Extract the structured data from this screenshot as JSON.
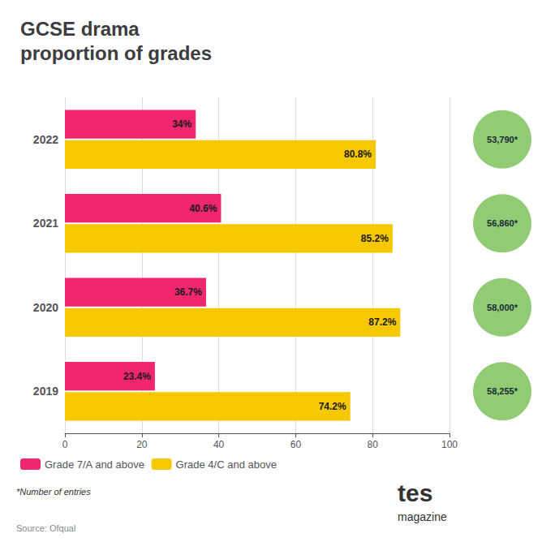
{
  "chart_data": {
    "type": "bar",
    "orientation": "horizontal",
    "title": "GCSE drama\nproportion of grades",
    "categories": [
      "2022",
      "2021",
      "2020",
      "2019"
    ],
    "series": [
      {
        "name": "Grade 7/A and above",
        "color": "#f0266e",
        "values": [
          34.0,
          40.6,
          36.7,
          23.4
        ],
        "value_labels": [
          "34%",
          "40.6%",
          "36.7%",
          "23.4%"
        ]
      },
      {
        "name": "Grade 4/C and above",
        "color": "#f5c800",
        "values": [
          80.8,
          85.2,
          87.2,
          74.2
        ],
        "value_labels": [
          "80.8%",
          "85.2%",
          "87.2%",
          "74.2%"
        ]
      }
    ],
    "annotations": [
      {
        "text": "53,790*",
        "category": "2022"
      },
      {
        "text": "56,860*",
        "category": "2021"
      },
      {
        "text": "58,000*",
        "category": "2020"
      },
      {
        "text": "58,255*",
        "category": "2019"
      },
      {
        "text": "*Number of entries"
      },
      {
        "text": "Source: Ofqual"
      },
      {
        "text": "tes"
      },
      {
        "text": "magazine"
      }
    ],
    "xlim": [
      0,
      100
    ],
    "xticks": [
      0,
      20,
      40,
      60,
      80,
      100
    ],
    "grid": true,
    "data_labels": true,
    "legend": "bottom left"
  }
}
